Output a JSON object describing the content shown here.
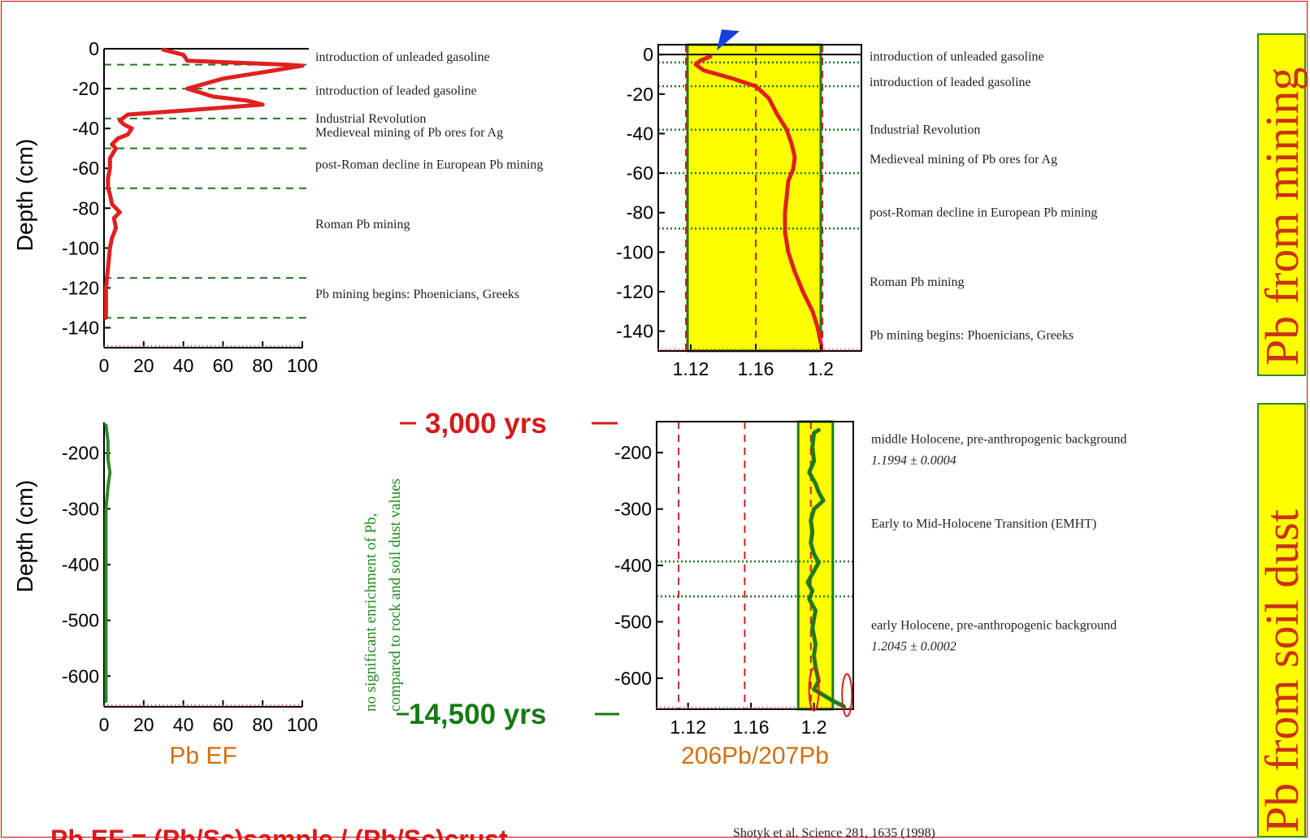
{
  "chart_data": [
    {
      "id": "pbef-top",
      "type": "line",
      "xlabel": "",
      "ylabel": "Depth (cm)",
      "xlim": [
        0,
        100
      ],
      "ylim": [
        -150,
        0
      ],
      "xticks": [
        0,
        20,
        40,
        60,
        80,
        100
      ],
      "yticks": [
        0,
        -20,
        -40,
        -60,
        -80,
        -100,
        -120,
        -140
      ],
      "line_color": "#e02020",
      "series": [
        {
          "name": "",
          "points": [
            [
              30,
              -0.5
            ],
            [
              40,
              -3
            ],
            [
              42,
              -6
            ],
            [
              92,
              -8
            ],
            [
              100,
              -8.5
            ],
            [
              85,
              -11
            ],
            [
              60,
              -15
            ],
            [
              42,
              -20
            ],
            [
              55,
              -24
            ],
            [
              72,
              -26
            ],
            [
              80,
              -28
            ],
            [
              40,
              -31
            ],
            [
              12,
              -33
            ],
            [
              8,
              -36
            ],
            [
              10,
              -38
            ],
            [
              14,
              -40
            ],
            [
              12,
              -43
            ],
            [
              7,
              -45
            ],
            [
              4,
              -48
            ],
            [
              6,
              -50
            ],
            [
              3,
              -55
            ],
            [
              3,
              -60
            ],
            [
              2,
              -65
            ],
            [
              2,
              -70
            ],
            [
              3,
              -73
            ],
            [
              4,
              -78
            ],
            [
              8,
              -82
            ],
            [
              5,
              -85
            ],
            [
              6,
              -90
            ],
            [
              4,
              -95
            ],
            [
              3,
              -100
            ],
            [
              2,
              -110
            ],
            [
              1,
              -120
            ],
            [
              1,
              -128
            ],
            [
              1,
              -135
            ]
          ]
        }
      ],
      "hlines": [
        -8,
        -20,
        -35,
        -50,
        -70,
        -115,
        -135
      ],
      "annotations": [
        {
          "y": -4,
          "text": "introduction of unleaded gasoline"
        },
        {
          "y": -21,
          "text": "introduction of leaded gasoline"
        },
        {
          "y": -35,
          "text": "Industrial Revolution"
        },
        {
          "y": -42,
          "text": "Medieveal mining of Pb ores for Ag"
        },
        {
          "y": -58,
          "text": "post-Roman decline in European Pb mining"
        },
        {
          "y": -88,
          "text": "Roman Pb mining"
        },
        {
          "y": -123,
          "text": "Pb mining begins: Phoenicians, Greeks"
        }
      ]
    },
    {
      "id": "ratio-top",
      "type": "line",
      "xlabel": "",
      "ylabel": "",
      "xlim": [
        1.1,
        1.225
      ],
      "ylim": [
        -150,
        5
      ],
      "xticks": [
        1.12,
        1.16,
        1.2
      ],
      "xticklabels": [
        "1.12",
        "1.16",
        "1.2"
      ],
      "yticks": [
        0,
        -20,
        -40,
        -60,
        -80,
        -100,
        -120,
        -140
      ],
      "band": [
        1.118,
        1.2
      ],
      "vlines": [
        1.117,
        1.16,
        1.201
      ],
      "line_color": "#e02020",
      "series": [
        {
          "name": "",
          "points": [
            [
              1.132,
              -1
            ],
            [
              1.126,
              -3
            ],
            [
              1.123,
              -5
            ],
            [
              1.128,
              -8
            ],
            [
              1.145,
              -12
            ],
            [
              1.16,
              -16
            ],
            [
              1.168,
              -22
            ],
            [
              1.173,
              -30
            ],
            [
              1.179,
              -38
            ],
            [
              1.182,
              -45
            ],
            [
              1.184,
              -52
            ],
            [
              1.183,
              -58
            ],
            [
              1.18,
              -64
            ],
            [
              1.179,
              -72
            ],
            [
              1.178,
              -80
            ],
            [
              1.178,
              -90
            ],
            [
              1.18,
              -100
            ],
            [
              1.184,
              -110
            ],
            [
              1.189,
              -120
            ],
            [
              1.195,
              -130
            ],
            [
              1.198,
              -138
            ],
            [
              1.2,
              -146
            ]
          ]
        }
      ],
      "hlines": [
        -4,
        -16,
        -38,
        -60,
        -88
      ],
      "arrow_color": "#1a3fe0",
      "annotations": [
        {
          "y": -1,
          "text": "introduction of unleaded gasoline"
        },
        {
          "y": -14,
          "text": "introduction of leaded gasoline"
        },
        {
          "y": -38,
          "text": "Industrial Revolution"
        },
        {
          "y": -53,
          "text": "Medieveal mining of Pb ores for Ag"
        },
        {
          "y": -80,
          "text": "post-Roman decline in European Pb mining"
        },
        {
          "y": -115,
          "text": "Roman Pb mining"
        },
        {
          "y": -142,
          "text": "Pb mining begins: Phoenicians, Greeks"
        }
      ]
    },
    {
      "id": "pbef-bottom",
      "type": "line",
      "xlabel": "Pb EF",
      "ylabel": "Depth (cm)",
      "xlim": [
        0,
        100
      ],
      "ylim": [
        -655,
        -145
      ],
      "xticks": [
        0,
        20,
        40,
        60,
        80,
        100
      ],
      "yticks": [
        -200,
        -300,
        -400,
        -500,
        -600
      ],
      "line_color": "#2a8a2a",
      "series": [
        {
          "name": "",
          "points": [
            [
              1,
              -150
            ],
            [
              2,
              -180
            ],
            [
              2,
              -210
            ],
            [
              3,
              -235
            ],
            [
              2,
              -260
            ],
            [
              1,
              -300
            ],
            [
              1,
              -350
            ],
            [
              1,
              -400
            ],
            [
              1,
              -450
            ],
            [
              1,
              -500
            ],
            [
              1,
              -550
            ],
            [
              1,
              -600
            ],
            [
              1,
              -645
            ]
          ]
        }
      ]
    },
    {
      "id": "ratio-bottom",
      "type": "line",
      "xlabel": "206Pb/207Pb",
      "ylabel": "",
      "xlim": [
        1.1,
        1.225
      ],
      "ylim": [
        -655,
        -145
      ],
      "xticks": [
        1.12,
        1.16,
        1.2
      ],
      "xticklabels": [
        "1.12",
        "1.16",
        "1.2"
      ],
      "yticks": [
        -200,
        -300,
        -400,
        -500,
        -600
      ],
      "band": [
        1.19,
        1.212
      ],
      "vlines": [
        1.114,
        1.156,
        1.198
      ],
      "line_color": "#1f7a1f",
      "series": [
        {
          "name": "",
          "points": [
            [
              1.203,
              -160
            ],
            [
              1.2,
              -165
            ],
            [
              1.199,
              -190
            ],
            [
              1.2,
              -215
            ],
            [
              1.197,
              -235
            ],
            [
              1.201,
              -255
            ],
            [
              1.203,
              -270
            ],
            [
              1.206,
              -285
            ],
            [
              1.2,
              -300
            ],
            [
              1.198,
              -320
            ],
            [
              1.199,
              -340
            ],
            [
              1.198,
              -360
            ],
            [
              1.2,
              -380
            ],
            [
              1.203,
              -395
            ],
            [
              1.2,
              -410
            ],
            [
              1.196,
              -430
            ],
            [
              1.199,
              -445
            ],
            [
              1.197,
              -460
            ],
            [
              1.201,
              -480
            ],
            [
              1.199,
              -510
            ],
            [
              1.201,
              -540
            ],
            [
              1.2,
              -560
            ],
            [
              1.201,
              -580
            ],
            [
              1.203,
              -605
            ],
            [
              1.2,
              -620
            ],
            [
              1.206,
              -630
            ],
            [
              1.212,
              -640
            ],
            [
              1.219,
              -650
            ]
          ]
        }
      ],
      "hlines": [
        -393,
        -455
      ],
      "ellipses_at": [
        [
          1.2,
          -620
        ],
        [
          1.221,
          -630
        ]
      ],
      "annotations": [
        {
          "y": -176,
          "text": "middle Holocene, pre-anthropogenic background",
          "sub": "1.1994 ± 0.0004"
        },
        {
          "y": -326,
          "text": "Early to Mid-Holocene Transition (EMHT)"
        },
        {
          "y": -506,
          "text": "early Holocene, pre-anthropogenic background",
          "sub": "1.2045 ± 0.0002"
        }
      ]
    }
  ],
  "labels": {
    "yrs_top": "3,000 yrs",
    "yrs_bottom": "14,500 yrs",
    "vnote_line1": "no significant enrichment of Pb,",
    "vnote_line2": "compared to rock and soil dust values",
    "side_top": "Pb from mining",
    "side_bottom": "Pb from soil dust",
    "formula": "Pb EF = (Pb/Sc)sample / (Pb/Sc)crust",
    "citation": "Shotyk et al. Science 281, 1635 (1998)"
  },
  "colors": {
    "frame": "#e00000",
    "band": "#ffff00",
    "band_border": "#1f7a1f",
    "grid_dash_left": "#1f7a1f",
    "grid_dot_right": "#1f7a1f",
    "vline": "#cc2020",
    "side_box_fill": "#ffff00",
    "side_box_border": "#2a8a2a"
  }
}
